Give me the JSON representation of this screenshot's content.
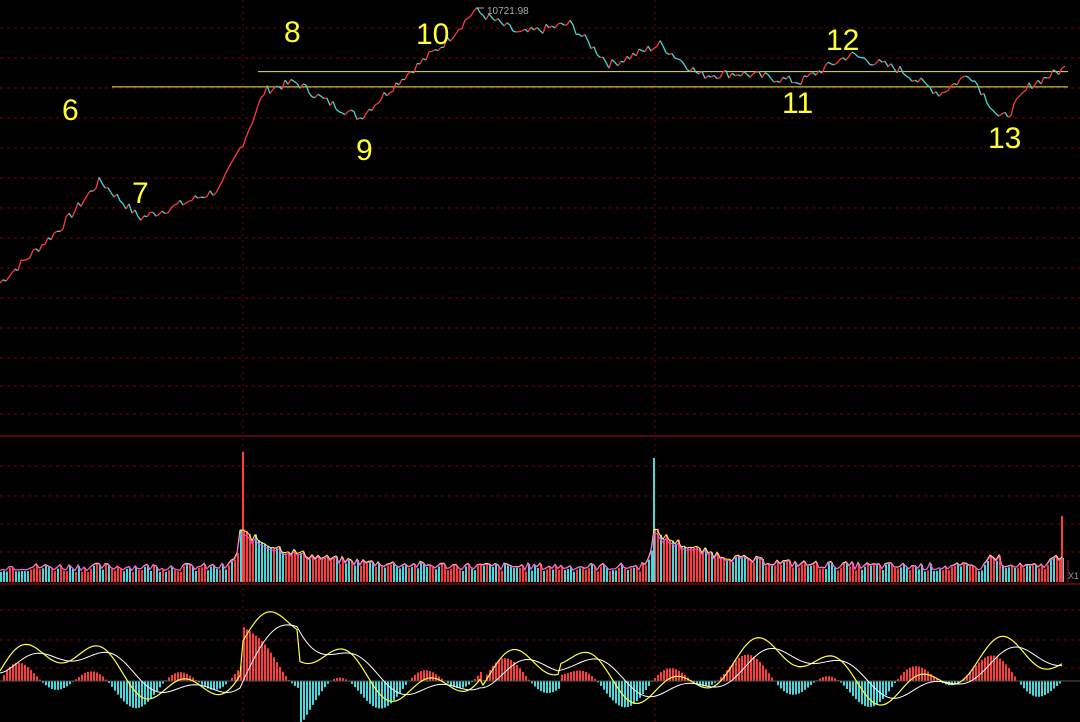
{
  "chart_data": {
    "type": "line",
    "panels": [
      "price",
      "volume",
      "macd"
    ],
    "price": {
      "peak_label": "10721.98",
      "wave_labels": [
        "6",
        "7",
        "8",
        "9",
        "10",
        "11",
        "12",
        "13"
      ],
      "series": {
        "x": [
          0,
          60,
          100,
          140,
          180,
          220,
          245,
          265,
          295,
          325,
          360,
          400,
          445,
          475,
          520,
          570,
          610,
          660,
          700,
          740,
          800,
          850,
          900,
          940,
          970,
          1000,
          1010,
          1030,
          1065
        ],
        "y": [
          9100,
          9420,
          9700,
          9480,
          9560,
          9650,
          9950,
          10230,
          10280,
          10170,
          10070,
          10290,
          10510,
          10700,
          10560,
          10620,
          10380,
          10500,
          10320,
          10330,
          10280,
          10440,
          10350,
          10210,
          10330,
          10060,
          10100,
          10260,
          10360
        ]
      },
      "resistance_lines": [
        10250,
        10340
      ],
      "grid": true
    },
    "volume": {
      "grid": true,
      "spikes": [
        240,
        653
      ]
    },
    "macd": {
      "grid": true
    }
  },
  "colors": {
    "background": "#000000",
    "up": "#ff3b3b",
    "down": "#45d8dc",
    "grid": "#7a0000",
    "separator": "#aa1111",
    "annotation": "#ffff33",
    "signal_line": "#ffffff",
    "dif_line": "#ffff44",
    "volume_avg": "#ff44ff"
  },
  "side_tag": "X1"
}
